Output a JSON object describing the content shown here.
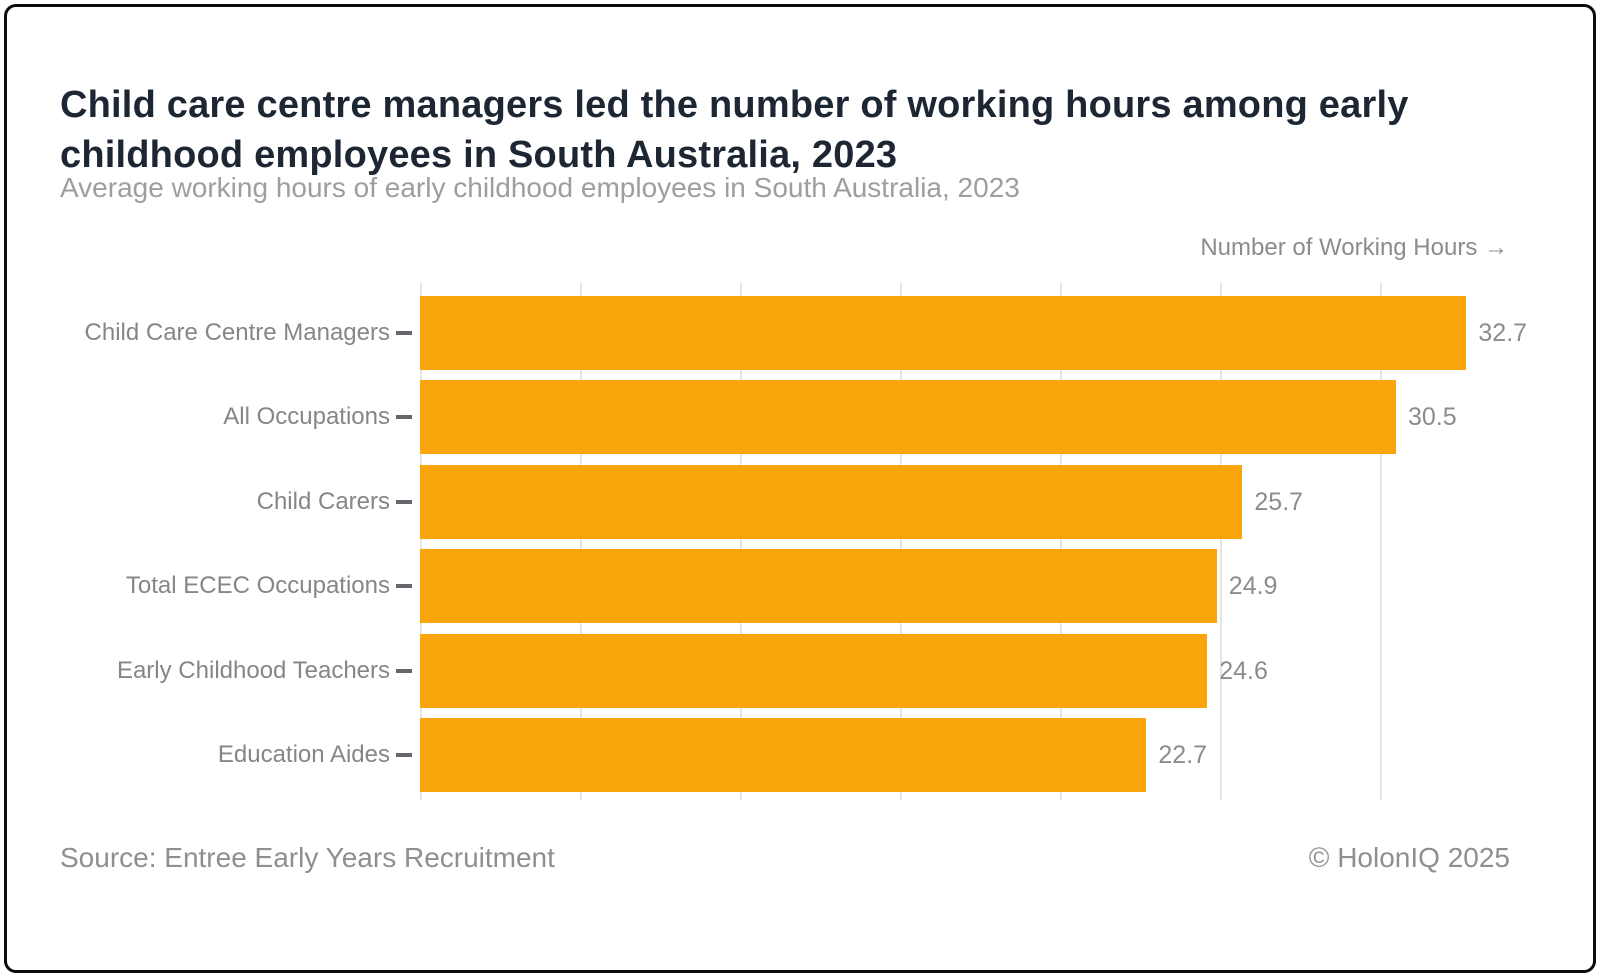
{
  "header": {
    "title": "Child care centre managers led the number of working hours among early childhood employees in South Australia, 2023",
    "subtitle": "Average working hours of early childhood employees in South Australia, 2023"
  },
  "chart_data": {
    "type": "bar",
    "orientation": "horizontal",
    "title": "Child care centre managers led the number of working hours among early childhood employees in South Australia, 2023",
    "subtitle": "Average working hours of early childhood employees in South Australia, 2023",
    "xlabel": "Number of Working Hours →",
    "categories": [
      "Child Care Centre Managers",
      "All Occupations",
      "Child Carers",
      "Total ECEC Occupations",
      "Early Childhood Teachers",
      "Education Aides"
    ],
    "values": [
      32.7,
      30.5,
      25.7,
      24.9,
      24.6,
      22.7
    ],
    "value_labels": [
      "32.7",
      "30.5",
      "25.7",
      "24.9",
      "24.6",
      "22.7"
    ],
    "xlim": [
      0,
      35
    ],
    "gridline_step": 5,
    "grid": true,
    "legend": "none",
    "bar_color": "#FAA50C",
    "gridline_color": "#e4e4e4",
    "label_color": "#868686",
    "value_label_color": "#8c8c8c"
  },
  "footer": {
    "source": "Source: Entree Early Years Recruitment",
    "copyright": "© HolonIQ 2025"
  }
}
